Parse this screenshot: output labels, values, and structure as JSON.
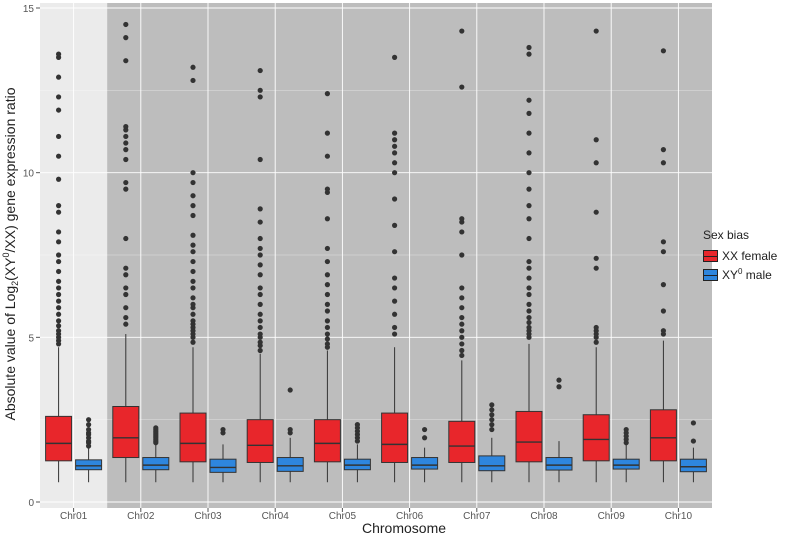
{
  "chart_data": {
    "type": "boxplot",
    "title": "",
    "xlabel": "Chromosome",
    "ylabel_prefix": "Absolute value of Log",
    "ylabel_sub": "2",
    "ylabel_mid": "(XY",
    "ylabel_sup": "0",
    "ylabel_suffix": "/XX) gene expression ratio",
    "ylim": [
      0,
      15
    ],
    "yticks": [
      0,
      5,
      10,
      15
    ],
    "categories": [
      "Chr01",
      "Chr02",
      "Chr03",
      "Chr04",
      "Chr05",
      "Chr06",
      "Chr07",
      "Chr08",
      "Chr09",
      "Chr10"
    ],
    "highlight_categories": [
      "Chr02",
      "Chr03",
      "Chr04",
      "Chr05",
      "Chr06",
      "Chr07",
      "Chr08",
      "Chr09",
      "Chr10"
    ],
    "legend": {
      "title": "Sex bias",
      "position": "right",
      "items": [
        {
          "label": "XX female",
          "color": "#e8262b"
        },
        {
          "label_prefix": "XY",
          "label_sup": "0",
          "label_suffix": " male",
          "color": "#2e86de"
        }
      ]
    },
    "series": [
      {
        "name": "XX female",
        "color": "#e8262b",
        "boxes": [
          {
            "min": 0.6,
            "q1": 1.25,
            "median": 1.78,
            "q3": 2.6,
            "max": 4.7,
            "outliers": [
              4.8,
              4.9,
              5.0,
              5.1,
              5.2,
              5.35,
              5.5,
              5.7,
              5.9,
              6.1,
              6.3,
              6.5,
              6.7,
              7.0,
              7.3,
              7.5,
              7.9,
              8.2,
              8.8,
              9.0,
              9.8,
              10.5,
              11.1,
              11.9,
              12.3,
              12.9,
              13.5,
              13.6
            ]
          },
          {
            "min": 0.6,
            "q1": 1.35,
            "median": 1.95,
            "q3": 2.9,
            "max": 5.1,
            "outliers": [
              5.4,
              5.6,
              5.9,
              6.3,
              6.5,
              6.9,
              7.1,
              8.0,
              9.5,
              9.7,
              10.4,
              10.7,
              10.9,
              11.1,
              11.3,
              11.4,
              13.4,
              14.1,
              14.5
            ]
          },
          {
            "min": 0.6,
            "q1": 1.22,
            "median": 1.78,
            "q3": 2.7,
            "max": 4.7,
            "outliers": [
              4.85,
              5.0,
              5.1,
              5.2,
              5.3,
              5.4,
              5.5,
              5.7,
              5.9,
              6.0,
              6.2,
              6.5,
              6.7,
              7.0,
              7.3,
              7.6,
              7.8,
              8.1,
              8.7,
              9.0,
              9.3,
              9.7,
              10.0,
              12.8,
              13.2
            ]
          },
          {
            "min": 0.6,
            "q1": 1.2,
            "median": 1.72,
            "q3": 2.5,
            "max": 4.5,
            "outliers": [
              4.6,
              4.75,
              4.85,
              5.0,
              5.1,
              5.3,
              5.5,
              5.7,
              6.0,
              6.3,
              6.5,
              6.9,
              7.2,
              7.5,
              7.7,
              8.0,
              8.5,
              8.9,
              10.4,
              12.3,
              12.5,
              13.1
            ]
          },
          {
            "min": 0.6,
            "q1": 1.22,
            "median": 1.78,
            "q3": 2.5,
            "max": 4.6,
            "outliers": [
              4.7,
              4.8,
              4.95,
              5.1,
              5.3,
              5.5,
              5.8,
              6.0,
              6.3,
              6.6,
              6.9,
              7.3,
              7.7,
              8.6,
              9.4,
              9.5,
              10.5,
              11.2,
              12.4
            ]
          },
          {
            "min": 0.6,
            "q1": 1.2,
            "median": 1.75,
            "q3": 2.7,
            "max": 4.7,
            "outliers": [
              5.1,
              5.3,
              5.7,
              6.1,
              6.5,
              6.8,
              7.6,
              8.4,
              9.2,
              10.0,
              10.3,
              10.6,
              10.8,
              11.0,
              11.2,
              13.5
            ]
          },
          {
            "min": 0.6,
            "q1": 1.2,
            "median": 1.7,
            "q3": 2.45,
            "max": 4.3,
            "outliers": [
              4.45,
              4.6,
              4.8,
              5.0,
              5.2,
              5.4,
              5.6,
              5.9,
              6.2,
              6.5,
              7.5,
              8.2,
              8.5,
              8.6,
              12.6,
              14.3
            ]
          },
          {
            "min": 0.6,
            "q1": 1.22,
            "median": 1.82,
            "q3": 2.75,
            "max": 4.8,
            "outliers": [
              5.0,
              5.1,
              5.2,
              5.3,
              5.45,
              5.6,
              5.8,
              6.0,
              6.3,
              6.5,
              6.8,
              7.1,
              7.3,
              8.0,
              8.6,
              9.0,
              9.5,
              10.0,
              10.6,
              11.2,
              11.8,
              12.2,
              13.6,
              13.8
            ]
          },
          {
            "min": 0.6,
            "q1": 1.25,
            "median": 1.9,
            "q3": 2.65,
            "max": 4.7,
            "outliers": [
              4.85,
              5.0,
              5.1,
              5.2,
              5.3,
              7.1,
              7.4,
              8.8,
              10.3,
              11.0,
              14.3
            ]
          },
          {
            "min": 0.6,
            "q1": 1.25,
            "median": 1.95,
            "q3": 2.8,
            "max": 4.9,
            "outliers": [
              5.1,
              5.2,
              5.8,
              6.6,
              7.6,
              7.9,
              10.3,
              10.7,
              13.7
            ]
          }
        ]
      },
      {
        "name": "XY0 male",
        "color": "#2e86de",
        "boxes": [
          {
            "min": 0.6,
            "q1": 0.98,
            "median": 1.1,
            "q3": 1.28,
            "max": 1.65,
            "outliers": [
              1.7,
              1.8,
              1.85,
              1.95,
              2.05,
              2.1,
              2.2,
              2.35,
              2.5
            ]
          },
          {
            "min": 0.6,
            "q1": 0.98,
            "median": 1.12,
            "q3": 1.35,
            "max": 1.75,
            "outliers": [
              1.8,
              1.85,
              1.9,
              1.95,
              2.0,
              2.05,
              2.1,
              2.15,
              2.2,
              2.25
            ]
          },
          {
            "min": 0.6,
            "q1": 0.9,
            "median": 1.05,
            "q3": 1.3,
            "max": 1.75,
            "outliers": [
              2.1,
              2.2
            ]
          },
          {
            "min": 0.6,
            "q1": 0.93,
            "median": 1.1,
            "q3": 1.35,
            "max": 1.95,
            "outliers": [
              2.1,
              2.2,
              3.4
            ]
          },
          {
            "min": 0.6,
            "q1": 0.98,
            "median": 1.12,
            "q3": 1.3,
            "max": 1.75,
            "outliers": [
              1.85,
              1.95,
              2.05,
              2.15,
              2.25,
              2.35
            ]
          },
          {
            "min": 0.6,
            "q1": 1.0,
            "median": 1.12,
            "q3": 1.35,
            "max": 1.65,
            "outliers": [
              1.95,
              2.2
            ]
          },
          {
            "min": 0.6,
            "q1": 0.95,
            "median": 1.1,
            "q3": 1.4,
            "max": 1.95,
            "outliers": [
              2.2,
              2.35,
              2.5,
              2.65,
              2.8,
              2.95
            ]
          },
          {
            "min": 0.6,
            "q1": 0.97,
            "median": 1.12,
            "q3": 1.35,
            "max": 1.85,
            "outliers": [
              3.5,
              3.7
            ]
          },
          {
            "min": 0.6,
            "q1": 1.0,
            "median": 1.12,
            "q3": 1.3,
            "max": 1.75,
            "outliers": [
              1.8,
              1.9,
              2.0,
              2.1,
              2.2
            ]
          },
          {
            "min": 0.6,
            "q1": 0.92,
            "median": 1.07,
            "q3": 1.3,
            "max": 1.65,
            "outliers": [
              1.85,
              2.4
            ]
          }
        ]
      }
    ]
  }
}
